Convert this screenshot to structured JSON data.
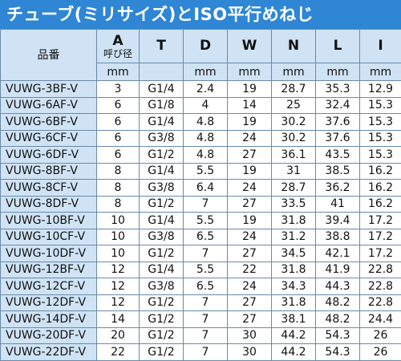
{
  "title": "チューブ(ミリサイズ)とISO平行めねじ",
  "headers": {
    "model": "品番",
    "cols": [
      {
        "key": "A",
        "sub": "呼び径"
      },
      {
        "key": "T",
        "sub": ""
      },
      {
        "key": "D",
        "sub": ""
      },
      {
        "key": "W",
        "sub": ""
      },
      {
        "key": "N",
        "sub": ""
      },
      {
        "key": "L",
        "sub": ""
      },
      {
        "key": "I",
        "sub": ""
      }
    ],
    "units": [
      "mm",
      "",
      "mm",
      "mm",
      "mm",
      "mm",
      "mm"
    ]
  },
  "rows": [
    [
      "VUWG-3BF-V",
      "3",
      "G1/4",
      "2.4",
      "19",
      "28.7",
      "35.3",
      "12.9"
    ],
    [
      "VUWG-6AF-V",
      "6",
      "G1/8",
      "4",
      "14",
      "25",
      "32.4",
      "15.3"
    ],
    [
      "VUWG-6BF-V",
      "6",
      "G1/4",
      "4.8",
      "19",
      "30.2",
      "37.6",
      "15.3"
    ],
    [
      "VUWG-6CF-V",
      "6",
      "G3/8",
      "4.8",
      "24",
      "30.2",
      "37.6",
      "15.3"
    ],
    [
      "VUWG-6DF-V",
      "6",
      "G1/2",
      "4.8",
      "27",
      "36.1",
      "43.5",
      "15.3"
    ],
    [
      "VUWG-8BF-V",
      "8",
      "G1/4",
      "5.5",
      "19",
      "31",
      "38.5",
      "16.2"
    ],
    [
      "VUWG-8CF-V",
      "8",
      "G3/8",
      "6.4",
      "24",
      "28.7",
      "36.2",
      "16.2"
    ],
    [
      "VUWG-8DF-V",
      "8",
      "G1/2",
      "7",
      "27",
      "33.5",
      "41",
      "16.2"
    ],
    [
      "VUWG-10BF-V",
      "10",
      "G1/4",
      "5.5",
      "19",
      "31.8",
      "39.4",
      "17.2"
    ],
    [
      "VUWG-10CF-V",
      "10",
      "G3/8",
      "6.5",
      "24",
      "31.2",
      "38.8",
      "17.2"
    ],
    [
      "VUWG-10DF-V",
      "10",
      "G1/2",
      "7",
      "27",
      "34.5",
      "42.1",
      "17.2"
    ],
    [
      "VUWG-12BF-V",
      "12",
      "G1/4",
      "5.5",
      "22",
      "31.8",
      "41.9",
      "22.8"
    ],
    [
      "VUWG-12CF-V",
      "12",
      "G3/8",
      "6.5",
      "24",
      "34.3",
      "44.3",
      "22.8"
    ],
    [
      "VUWG-12DF-V",
      "12",
      "G1/2",
      "7",
      "27",
      "31.8",
      "48.2",
      "22.8"
    ],
    [
      "VUWG-14DF-V",
      "14",
      "G1/2",
      "7",
      "27",
      "38.1",
      "48.2",
      "24.4"
    ],
    [
      "VUWG-20DF-V",
      "20",
      "G1/2",
      "7",
      "30",
      "44.2",
      "54.3",
      "26"
    ],
    [
      "VUWG-22DF-V",
      "22",
      "G1/2",
      "7",
      "30",
      "44.2",
      "54.3",
      "26"
    ]
  ]
}
